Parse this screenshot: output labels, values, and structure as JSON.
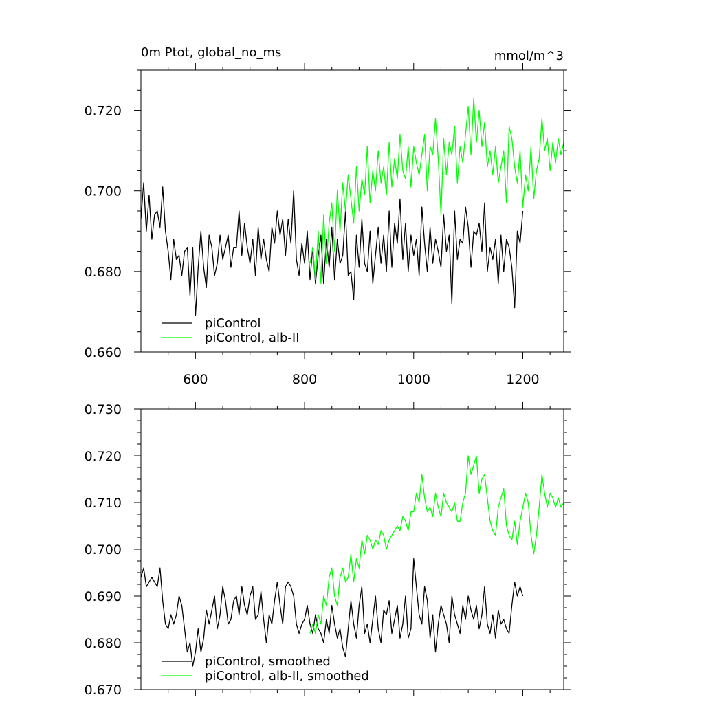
{
  "chart_data": [
    {
      "type": "line",
      "title_left": "0m Ptot, global_no_ms",
      "title_right": "mmol/m^3",
      "xlim": [
        500,
        1275
      ],
      "ylim": [
        0.66,
        0.73
      ],
      "xticks": [
        600,
        800,
        1000,
        1200
      ],
      "xtick_labels": [
        "600",
        "800",
        "1000",
        "1200"
      ],
      "yticks": [
        0.66,
        0.68,
        0.7,
        0.72
      ],
      "ytick_labels": [
        "0.660",
        "0.680",
        "0.700",
        "0.720"
      ],
      "grid": false,
      "legend_position": "bottom-left",
      "series": [
        {
          "name": "piControl",
          "color": "#000000",
          "x": [
            500,
            505,
            510,
            515,
            520,
            525,
            530,
            535,
            540,
            545,
            550,
            555,
            560,
            565,
            570,
            575,
            580,
            585,
            590,
            595,
            600,
            605,
            610,
            615,
            620,
            625,
            630,
            635,
            640,
            645,
            650,
            655,
            660,
            665,
            670,
            675,
            680,
            685,
            690,
            695,
            700,
            705,
            710,
            715,
            720,
            725,
            730,
            735,
            740,
            745,
            750,
            755,
            760,
            765,
            770,
            775,
            780,
            785,
            790,
            795,
            800,
            805,
            810,
            815,
            820,
            825,
            830,
            835,
            840,
            845,
            850,
            855,
            860,
            865,
            870,
            875,
            880,
            885,
            890,
            895,
            900,
            905,
            910,
            915,
            920,
            925,
            930,
            935,
            940,
            945,
            950,
            955,
            960,
            965,
            970,
            975,
            980,
            985,
            990,
            995,
            1000,
            1005,
            1010,
            1015,
            1020,
            1025,
            1030,
            1035,
            1040,
            1045,
            1050,
            1055,
            1060,
            1065,
            1070,
            1075,
            1080,
            1085,
            1090,
            1095,
            1100,
            1105,
            1110,
            1115,
            1120,
            1125,
            1130,
            1135,
            1140,
            1145,
            1150,
            1155,
            1160,
            1165,
            1170,
            1175,
            1180,
            1185,
            1190,
            1195,
            1200
          ],
          "values": [
            0.693,
            0.702,
            0.69,
            0.699,
            0.688,
            0.694,
            0.695,
            0.691,
            0.701,
            0.69,
            0.685,
            0.678,
            0.688,
            0.683,
            0.684,
            0.679,
            0.685,
            0.686,
            0.674,
            0.686,
            0.669,
            0.681,
            0.69,
            0.681,
            0.676,
            0.689,
            0.686,
            0.679,
            0.682,
            0.689,
            0.683,
            0.686,
            0.689,
            0.681,
            0.686,
            0.686,
            0.695,
            0.684,
            0.692,
            0.686,
            0.682,
            0.688,
            0.679,
            0.691,
            0.683,
            0.688,
            0.683,
            0.68,
            0.691,
            0.687,
            0.695,
            0.689,
            0.693,
            0.684,
            0.693,
            0.687,
            0.7,
            0.683,
            0.679,
            0.687,
            0.682,
            0.69,
            0.678,
            0.686,
            0.677,
            0.684,
            0.689,
            0.677,
            0.688,
            0.681,
            0.691,
            0.678,
            0.688,
            0.682,
            0.684,
            0.695,
            0.679,
            0.68,
            0.673,
            0.689,
            0.681,
            0.693,
            0.682,
            0.68,
            0.69,
            0.677,
            0.684,
            0.691,
            0.682,
            0.689,
            0.68,
            0.695,
            0.681,
            0.692,
            0.687,
            0.698,
            0.683,
            0.692,
            0.68,
            0.689,
            0.684,
            0.688,
            0.679,
            0.696,
            0.687,
            0.68,
            0.691,
            0.682,
            0.688,
            0.685,
            0.681,
            0.694,
            0.685,
            0.689,
            0.672,
            0.695,
            0.683,
            0.688,
            0.687,
            0.696,
            0.691,
            0.681,
            0.69,
            0.689,
            0.692,
            0.685,
            0.697,
            0.68,
            0.686,
            0.683,
            0.688,
            0.677,
            0.689,
            0.68,
            0.688,
            0.686,
            0.681,
            0.671,
            0.69,
            0.687,
            0.695
          ]
        },
        {
          "name": "piControl, alb-II",
          "color": "#00ff00",
          "x": [
            810,
            815,
            820,
            825,
            830,
            835,
            840,
            845,
            850,
            855,
            860,
            865,
            870,
            875,
            880,
            885,
            890,
            895,
            900,
            905,
            910,
            915,
            920,
            925,
            930,
            935,
            940,
            945,
            950,
            955,
            960,
            965,
            970,
            975,
            980,
            985,
            990,
            995,
            1000,
            1005,
            1010,
            1015,
            1020,
            1025,
            1030,
            1035,
            1040,
            1045,
            1050,
            1055,
            1060,
            1065,
            1070,
            1075,
            1080,
            1085,
            1090,
            1095,
            1100,
            1105,
            1110,
            1115,
            1120,
            1125,
            1130,
            1135,
            1140,
            1145,
            1150,
            1155,
            1160,
            1165,
            1170,
            1175,
            1180,
            1185,
            1190,
            1195,
            1200,
            1205,
            1210,
            1215,
            1220,
            1225,
            1230,
            1235,
            1240,
            1245,
            1250,
            1255,
            1260,
            1265,
            1270,
            1275
          ],
          "values": [
            0.682,
            0.686,
            0.678,
            0.69,
            0.677,
            0.694,
            0.682,
            0.692,
            0.697,
            0.685,
            0.7,
            0.69,
            0.702,
            0.695,
            0.704,
            0.698,
            0.692,
            0.706,
            0.695,
            0.703,
            0.699,
            0.711,
            0.697,
            0.705,
            0.7,
            0.71,
            0.702,
            0.706,
            0.699,
            0.712,
            0.701,
            0.708,
            0.703,
            0.714,
            0.705,
            0.703,
            0.711,
            0.701,
            0.711,
            0.707,
            0.704,
            0.709,
            0.714,
            0.7,
            0.711,
            0.709,
            0.718,
            0.708,
            0.694,
            0.713,
            0.704,
            0.712,
            0.709,
            0.716,
            0.702,
            0.711,
            0.707,
            0.714,
            0.721,
            0.709,
            0.723,
            0.712,
            0.72,
            0.711,
            0.717,
            0.706,
            0.71,
            0.704,
            0.711,
            0.702,
            0.706,
            0.71,
            0.697,
            0.716,
            0.713,
            0.706,
            0.702,
            0.71,
            0.696,
            0.704,
            0.7,
            0.711,
            0.698,
            0.705,
            0.708,
            0.718,
            0.71,
            0.713,
            0.705,
            0.712,
            0.707,
            0.713,
            0.709,
            0.712
          ]
        }
      ]
    },
    {
      "type": "line",
      "title_left": "",
      "title_right": "",
      "xlim": [
        500,
        1275
      ],
      "ylim": [
        0.67,
        0.73
      ],
      "xticks": [
        600,
        800,
        1000,
        1200
      ],
      "xtick_labels": [],
      "yticks": [
        0.67,
        0.68,
        0.69,
        0.7,
        0.71,
        0.72,
        0.73
      ],
      "ytick_labels": [
        "0.670",
        "0.680",
        "0.690",
        "0.700",
        "0.710",
        "0.720",
        "0.730"
      ],
      "grid": false,
      "legend_position": "bottom-left",
      "series": [
        {
          "name": "piControl, smoothed",
          "color": "#000000",
          "x": [
            500,
            505,
            510,
            515,
            520,
            525,
            530,
            535,
            540,
            545,
            550,
            555,
            560,
            565,
            570,
            575,
            580,
            585,
            590,
            595,
            600,
            605,
            610,
            615,
            620,
            625,
            630,
            635,
            640,
            645,
            650,
            655,
            660,
            665,
            670,
            675,
            680,
            685,
            690,
            695,
            700,
            705,
            710,
            715,
            720,
            725,
            730,
            735,
            740,
            745,
            750,
            755,
            760,
            765,
            770,
            775,
            780,
            785,
            790,
            795,
            800,
            805,
            810,
            815,
            820,
            825,
            830,
            835,
            840,
            845,
            850,
            855,
            860,
            865,
            870,
            875,
            880,
            885,
            890,
            895,
            900,
            905,
            910,
            915,
            920,
            925,
            930,
            935,
            940,
            945,
            950,
            955,
            960,
            965,
            970,
            975,
            980,
            985,
            990,
            995,
            1000,
            1005,
            1010,
            1015,
            1020,
            1025,
            1030,
            1035,
            1040,
            1045,
            1050,
            1055,
            1060,
            1065,
            1070,
            1075,
            1080,
            1085,
            1090,
            1095,
            1100,
            1105,
            1110,
            1115,
            1120,
            1125,
            1130,
            1135,
            1140,
            1145,
            1150,
            1155,
            1160,
            1165,
            1170,
            1175,
            1180,
            1185,
            1190,
            1195,
            1200
          ],
          "values": [
            0.694,
            0.696,
            0.692,
            0.693,
            0.694,
            0.693,
            0.692,
            0.696,
            0.689,
            0.684,
            0.683,
            0.686,
            0.684,
            0.686,
            0.69,
            0.688,
            0.683,
            0.678,
            0.68,
            0.675,
            0.678,
            0.683,
            0.678,
            0.681,
            0.687,
            0.684,
            0.687,
            0.69,
            0.683,
            0.686,
            0.692,
            0.689,
            0.684,
            0.685,
            0.689,
            0.69,
            0.686,
            0.692,
            0.688,
            0.686,
            0.69,
            0.692,
            0.685,
            0.686,
            0.691,
            0.685,
            0.68,
            0.686,
            0.684,
            0.689,
            0.693,
            0.688,
            0.684,
            0.692,
            0.693,
            0.692,
            0.69,
            0.684,
            0.682,
            0.684,
            0.685,
            0.688,
            0.684,
            0.682,
            0.686,
            0.683,
            0.682,
            0.68,
            0.685,
            0.682,
            0.688,
            0.684,
            0.681,
            0.683,
            0.679,
            0.677,
            0.683,
            0.689,
            0.684,
            0.681,
            0.688,
            0.692,
            0.682,
            0.684,
            0.68,
            0.685,
            0.69,
            0.683,
            0.68,
            0.687,
            0.686,
            0.689,
            0.682,
            0.685,
            0.688,
            0.681,
            0.684,
            0.69,
            0.681,
            0.683,
            0.698,
            0.692,
            0.686,
            0.684,
            0.692,
            0.689,
            0.681,
            0.686,
            0.678,
            0.684,
            0.688,
            0.686,
            0.684,
            0.68,
            0.69,
            0.686,
            0.684,
            0.682,
            0.688,
            0.685,
            0.69,
            0.687,
            0.685,
            0.688,
            0.683,
            0.686,
            0.692,
            0.684,
            0.682,
            0.686,
            0.681,
            0.687,
            0.684,
            0.685,
            0.683,
            0.682,
            0.688,
            0.693,
            0.69,
            0.692,
            0.69
          ]
        },
        {
          "name": "piControl, alb-II, smoothed",
          "color": "#00ff00",
          "x": [
            810,
            815,
            820,
            825,
            830,
            835,
            840,
            845,
            850,
            855,
            860,
            865,
            870,
            875,
            880,
            885,
            890,
            895,
            900,
            905,
            910,
            915,
            920,
            925,
            930,
            935,
            940,
            945,
            950,
            955,
            960,
            965,
            970,
            975,
            980,
            985,
            990,
            995,
            1000,
            1005,
            1010,
            1015,
            1020,
            1025,
            1030,
            1035,
            1040,
            1045,
            1050,
            1055,
            1060,
            1065,
            1070,
            1075,
            1080,
            1085,
            1090,
            1095,
            1100,
            1105,
            1110,
            1115,
            1120,
            1125,
            1130,
            1135,
            1140,
            1145,
            1150,
            1155,
            1160,
            1165,
            1170,
            1175,
            1180,
            1185,
            1190,
            1195,
            1200,
            1205,
            1210,
            1215,
            1220,
            1225,
            1230,
            1235,
            1240,
            1245,
            1250,
            1255,
            1260,
            1265,
            1270,
            1275
          ],
          "values": [
            0.682,
            0.684,
            0.682,
            0.686,
            0.684,
            0.69,
            0.688,
            0.694,
            0.696,
            0.69,
            0.688,
            0.694,
            0.696,
            0.693,
            0.694,
            0.699,
            0.693,
            0.698,
            0.696,
            0.702,
            0.699,
            0.703,
            0.702,
            0.7,
            0.702,
            0.701,
            0.704,
            0.703,
            0.7,
            0.702,
            0.703,
            0.704,
            0.705,
            0.704,
            0.707,
            0.706,
            0.704,
            0.708,
            0.708,
            0.712,
            0.71,
            0.716,
            0.711,
            0.708,
            0.709,
            0.707,
            0.712,
            0.709,
            0.707,
            0.712,
            0.71,
            0.709,
            0.708,
            0.71,
            0.706,
            0.706,
            0.71,
            0.712,
            0.72,
            0.716,
            0.718,
            0.72,
            0.712,
            0.715,
            0.716,
            0.711,
            0.706,
            0.704,
            0.703,
            0.709,
            0.711,
            0.713,
            0.705,
            0.703,
            0.702,
            0.706,
            0.701,
            0.706,
            0.709,
            0.712,
            0.71,
            0.703,
            0.699,
            0.703,
            0.709,
            0.716,
            0.712,
            0.709,
            0.712,
            0.711,
            0.709,
            0.711,
            0.709,
            0.71
          ]
        }
      ]
    }
  ]
}
